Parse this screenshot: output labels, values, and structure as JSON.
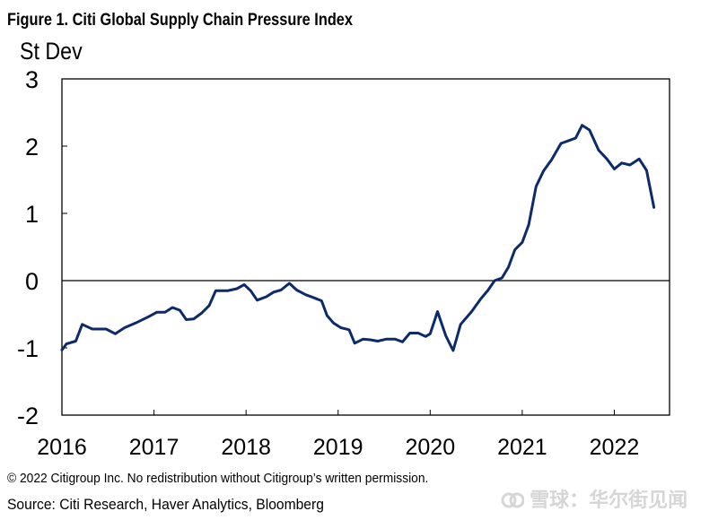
{
  "figure_title": "Figure 1. Citi Global Supply Chain Pressure Index",
  "unit_label": "St Dev",
  "copyright": "© 2022 Citigroup Inc. No redistribution without Citigroup’s written permission.",
  "source": "Source: Citi Research, Haver Analytics, Bloomberg",
  "watermark": "雪球：华尔街见闻",
  "colors": {
    "series": "#0d2a6b",
    "axis": "#000000",
    "watermark": "#d6d6d6"
  },
  "chart_data": {
    "type": "line",
    "title": "Figure 1. Citi Global Supply Chain Pressure Index",
    "ylabel": "St Dev",
    "xlabel": "",
    "ylim": [
      -2,
      3
    ],
    "xlim": [
      2016.0,
      2022.6
    ],
    "yticks": [
      "3",
      "2",
      "1",
      "0",
      "-1",
      "-2"
    ],
    "ytick_values": [
      3,
      2,
      1,
      0,
      -1,
      -2
    ],
    "xticks": [
      "2016",
      "2017",
      "2018",
      "2019",
      "2020",
      "2021",
      "2022"
    ],
    "xtick_values": [
      2016,
      2017,
      2018,
      2019,
      2020,
      2021,
      2022
    ],
    "grid": false,
    "zero_line": true,
    "series": [
      {
        "points": [
          [
            2016.0,
            -1.03
          ],
          [
            2016.05,
            -0.94
          ],
          [
            2016.15,
            -0.9
          ],
          [
            2016.22,
            -0.65
          ],
          [
            2016.33,
            -0.72
          ],
          [
            2016.48,
            -0.72
          ],
          [
            2016.58,
            -0.79
          ],
          [
            2016.68,
            -0.7
          ],
          [
            2016.8,
            -0.63
          ],
          [
            2016.95,
            -0.53
          ],
          [
            2017.03,
            -0.47
          ],
          [
            2017.12,
            -0.47
          ],
          [
            2017.2,
            -0.4
          ],
          [
            2017.28,
            -0.44
          ],
          [
            2017.35,
            -0.58
          ],
          [
            2017.43,
            -0.57
          ],
          [
            2017.52,
            -0.48
          ],
          [
            2017.6,
            -0.37
          ],
          [
            2017.67,
            -0.15
          ],
          [
            2017.8,
            -0.15
          ],
          [
            2017.9,
            -0.12
          ],
          [
            2017.98,
            -0.06
          ],
          [
            2018.05,
            -0.15
          ],
          [
            2018.12,
            -0.29
          ],
          [
            2018.22,
            -0.24
          ],
          [
            2018.3,
            -0.17
          ],
          [
            2018.38,
            -0.14
          ],
          [
            2018.47,
            -0.04
          ],
          [
            2018.55,
            -0.14
          ],
          [
            2018.65,
            -0.21
          ],
          [
            2018.73,
            -0.25
          ],
          [
            2018.82,
            -0.3
          ],
          [
            2018.88,
            -0.52
          ],
          [
            2018.95,
            -0.63
          ],
          [
            2019.03,
            -0.7
          ],
          [
            2019.12,
            -0.73
          ],
          [
            2019.18,
            -0.93
          ],
          [
            2019.27,
            -0.87
          ],
          [
            2019.35,
            -0.88
          ],
          [
            2019.43,
            -0.9
          ],
          [
            2019.52,
            -0.87
          ],
          [
            2019.62,
            -0.87
          ],
          [
            2019.7,
            -0.91
          ],
          [
            2019.78,
            -0.78
          ],
          [
            2019.87,
            -0.78
          ],
          [
            2019.95,
            -0.83
          ],
          [
            2020.0,
            -0.79
          ],
          [
            2020.08,
            -0.46
          ],
          [
            2020.17,
            -0.82
          ],
          [
            2020.25,
            -1.04
          ],
          [
            2020.33,
            -0.65
          ],
          [
            2020.45,
            -0.46
          ],
          [
            2020.55,
            -0.27
          ],
          [
            2020.63,
            -0.14
          ],
          [
            2020.7,
            0.0
          ],
          [
            2020.78,
            0.04
          ],
          [
            2020.85,
            0.2
          ],
          [
            2020.92,
            0.46
          ],
          [
            2021.0,
            0.57
          ],
          [
            2021.07,
            0.83
          ],
          [
            2021.15,
            1.4
          ],
          [
            2021.23,
            1.63
          ],
          [
            2021.32,
            1.8
          ],
          [
            2021.42,
            2.04
          ],
          [
            2021.58,
            2.12
          ],
          [
            2021.65,
            2.31
          ],
          [
            2021.73,
            2.24
          ],
          [
            2021.83,
            1.94
          ],
          [
            2021.92,
            1.81
          ],
          [
            2022.0,
            1.66
          ],
          [
            2022.08,
            1.75
          ],
          [
            2022.17,
            1.72
          ],
          [
            2022.27,
            1.81
          ],
          [
            2022.35,
            1.64
          ],
          [
            2022.43,
            1.09
          ]
        ]
      }
    ]
  }
}
